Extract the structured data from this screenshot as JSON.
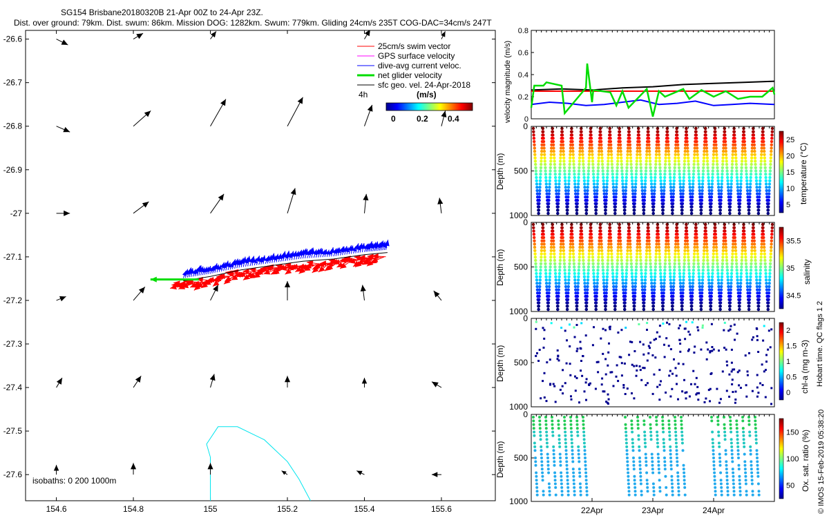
{
  "title": {
    "line1": "SG154 Brisbane20180320B 21-Apr 00Z to 24-Apr 23Z.",
    "line2": "Dist. over ground: 79km. Dist. swum: 86km. Mission DOG: 1282km. Swum: 779km. Gliding 24cm/s 235T COG-DAC=34cm/s 247T"
  },
  "map": {
    "xlim": [
      154.52,
      155.74
    ],
    "ylim": [
      -27.66,
      -26.58
    ],
    "xticks": [
      154.6,
      154.8,
      155.0,
      155.2,
      155.4,
      155.6
    ],
    "xtick_labels": [
      "154.6",
      "154.8",
      "155",
      "155.2",
      "155.4",
      "155.6"
    ],
    "yticks": [
      -26.6,
      -26.7,
      -26.8,
      -26.9,
      -27.0,
      -27.1,
      -27.2,
      -27.3,
      -27.4,
      -27.5,
      -27.6
    ],
    "ytick_labels": [
      "-26.6",
      "-26.7",
      "-26.8",
      "-26.9",
      "-27",
      "-27.1",
      "-27.2",
      "-27.3",
      "-27.4",
      "-27.5",
      "-27.6"
    ],
    "isobaths_label": "isobaths: 0   200  1000m",
    "legend": [
      {
        "label": "25cm/s swim vector",
        "color": "#ff0000"
      },
      {
        "label": "GPS surface velocity",
        "color": "#ff00ff"
      },
      {
        "label": "dive-avg current veloc.",
        "color": "#0000ff"
      },
      {
        "label": "net glider velocity",
        "color": "#00dd00"
      },
      {
        "label": "sfc geo. vel. 24-Apr-2018",
        "color": "#000000"
      }
    ],
    "colorbar_label": "4h",
    "colorbar_units": "(m/s)",
    "colorbar_ticks": [
      "0",
      "0.2",
      "0.4"
    ],
    "geo_vectors": [
      {
        "lon": 154.6,
        "lat": -26.6,
        "u": 0.06,
        "v": -0.03
      },
      {
        "lon": 154.8,
        "lat": -26.6,
        "u": 0.05,
        "v": 0.03
      },
      {
        "lon": 155.0,
        "lat": -26.6,
        "u": 0.03,
        "v": 0.04
      },
      {
        "lon": 155.4,
        "lat": -26.6,
        "u": 0.03,
        "v": 0.05
      },
      {
        "lon": 155.6,
        "lat": -26.6,
        "u": 0.02,
        "v": 0.04
      },
      {
        "lon": 154.6,
        "lat": -26.8,
        "u": 0.07,
        "v": -0.03
      },
      {
        "lon": 154.8,
        "lat": -26.8,
        "u": 0.09,
        "v": 0.08
      },
      {
        "lon": 155.0,
        "lat": -26.8,
        "u": 0.08,
        "v": 0.14
      },
      {
        "lon": 155.2,
        "lat": -26.8,
        "u": 0.08,
        "v": 0.15
      },
      {
        "lon": 155.4,
        "lat": -26.8,
        "u": 0.04,
        "v": 0.11
      },
      {
        "lon": 155.6,
        "lat": -26.8,
        "u": 0.02,
        "v": 0.08
      },
      {
        "lon": 154.6,
        "lat": -27.0,
        "u": 0.07,
        "v": 0.0
      },
      {
        "lon": 154.8,
        "lat": -27.0,
        "u": 0.08,
        "v": 0.06
      },
      {
        "lon": 155.0,
        "lat": -27.0,
        "u": 0.07,
        "v": 0.1
      },
      {
        "lon": 155.2,
        "lat": -27.0,
        "u": 0.04,
        "v": 0.13
      },
      {
        "lon": 155.4,
        "lat": -27.0,
        "u": 0.01,
        "v": 0.1
      },
      {
        "lon": 155.6,
        "lat": -27.0,
        "u": -0.01,
        "v": 0.08
      },
      {
        "lon": 154.6,
        "lat": -27.2,
        "u": 0.05,
        "v": 0.02
      },
      {
        "lon": 154.8,
        "lat": -27.2,
        "u": 0.06,
        "v": 0.07
      },
      {
        "lon": 155.0,
        "lat": -27.2,
        "u": 0.04,
        "v": 0.08
      },
      {
        "lon": 155.2,
        "lat": -27.2,
        "u": 0.0,
        "v": 0.1
      },
      {
        "lon": 155.4,
        "lat": -27.2,
        "u": -0.01,
        "v": 0.08
      },
      {
        "lon": 155.6,
        "lat": -27.2,
        "u": -0.04,
        "v": 0.05
      },
      {
        "lon": 154.6,
        "lat": -27.4,
        "u": 0.03,
        "v": 0.05
      },
      {
        "lon": 154.8,
        "lat": -27.4,
        "u": 0.04,
        "v": 0.06
      },
      {
        "lon": 155.0,
        "lat": -27.4,
        "u": 0.02,
        "v": 0.07
      },
      {
        "lon": 155.2,
        "lat": -27.4,
        "u": 0.0,
        "v": 0.06
      },
      {
        "lon": 155.4,
        "lat": -27.4,
        "u": 0.0,
        "v": 0.05
      },
      {
        "lon": 155.6,
        "lat": -27.4,
        "u": -0.05,
        "v": 0.03
      },
      {
        "lon": 154.6,
        "lat": -27.6,
        "u": 0.0,
        "v": 0.05
      },
      {
        "lon": 154.8,
        "lat": -27.6,
        "u": 0.0,
        "v": 0.06
      },
      {
        "lon": 155.0,
        "lat": -27.6,
        "u": 0.0,
        "v": 0.06
      },
      {
        "lon": 155.2,
        "lat": -27.6,
        "u": -0.03,
        "v": 0.02
      },
      {
        "lon": 155.4,
        "lat": -27.6,
        "u": -0.04,
        "v": 0.02
      },
      {
        "lon": 155.6,
        "lat": -27.6,
        "u": -0.05,
        "v": 0.0
      }
    ],
    "glider_track": [
      [
        154.93,
        -27.155
      ],
      [
        155.0,
        -27.145
      ],
      [
        155.08,
        -27.13
      ],
      [
        155.16,
        -27.12
      ],
      [
        155.24,
        -27.11
      ],
      [
        155.32,
        -27.105
      ],
      [
        155.4,
        -27.095
      ],
      [
        155.46,
        -27.09
      ]
    ],
    "net_velocity_arrow": {
      "lon": 154.97,
      "lat": -27.152,
      "u": -0.25,
      "v": 0.0
    },
    "isobath_1000m": [
      [
        155.0,
        -27.66
      ],
      [
        155.0,
        -27.56
      ],
      [
        154.99,
        -27.53
      ],
      [
        155.02,
        -27.49
      ],
      [
        155.07,
        -27.49
      ],
      [
        155.14,
        -27.52
      ],
      [
        155.2,
        -27.57
      ],
      [
        155.23,
        -27.61
      ],
      [
        155.26,
        -27.66
      ]
    ]
  },
  "chart_data": [
    {
      "type": "line",
      "ylabel": "velocity magnitude (m/s)",
      "ylim": [
        0,
        0.8
      ],
      "yticks": [
        "0",
        "0.2",
        "0.4",
        "0.6",
        "0.8"
      ],
      "xlim": [
        0,
        4
      ],
      "series": [
        {
          "name": "sfc geo. vel.",
          "color": "#000000",
          "x": [
            0,
            0.5,
            1,
            1.5,
            2,
            2.5,
            3,
            3.5,
            4
          ],
          "values": [
            0.26,
            0.27,
            0.26,
            0.28,
            0.29,
            0.31,
            0.32,
            0.33,
            0.34
          ]
        },
        {
          "name": "25cm/s swim vector",
          "color": "#ff0000",
          "x": [
            0,
            4
          ],
          "values": [
            0.25,
            0.25
          ]
        },
        {
          "name": "dive-avg current veloc.",
          "color": "#0000ff",
          "x": [
            0,
            0.3,
            0.6,
            0.9,
            1.2,
            1.5,
            1.8,
            2.1,
            2.4,
            2.7,
            3.0,
            3.3,
            3.6,
            4
          ],
          "values": [
            0.13,
            0.15,
            0.14,
            0.12,
            0.13,
            0.15,
            0.17,
            0.13,
            0.14,
            0.16,
            0.12,
            0.13,
            0.14,
            0.13
          ]
        },
        {
          "name": "net glider velocity",
          "color": "#00dd00",
          "x": [
            0,
            0.05,
            0.2,
            0.25,
            0.5,
            0.55,
            0.9,
            0.92,
            1.0,
            1.02,
            1.3,
            1.4,
            1.5,
            1.6,
            1.9,
            2.0,
            2.1,
            2.2,
            2.5,
            2.6,
            2.8,
            3.0,
            3.2,
            3.4,
            3.6,
            3.8,
            3.97,
            4
          ],
          "values": [
            0.1,
            0.3,
            0.3,
            0.33,
            0.3,
            0.05,
            0.28,
            0.5,
            0.15,
            0.26,
            0.24,
            0.12,
            0.25,
            0.1,
            0.27,
            0.02,
            0.25,
            0.2,
            0.27,
            0.18,
            0.26,
            0.2,
            0.25,
            0.18,
            0.2,
            0.2,
            0.28,
            0.22
          ]
        }
      ],
      "xtick_labels": []
    },
    {
      "type": "scatter",
      "name": "temperature",
      "ylabel": "Depth (m)",
      "ylim": [
        1000,
        0
      ],
      "yticks": [
        "0",
        "500",
        "1000"
      ],
      "colorbar_label": "temperature (°C)",
      "colorbar_ticks": [
        "5",
        "10",
        "15",
        "20",
        "25"
      ],
      "clim": [
        4,
        28
      ],
      "dives": 25
    },
    {
      "type": "scatter",
      "name": "salinity",
      "ylabel": "Depth (m)",
      "ylim": [
        1000,
        0
      ],
      "yticks": [
        "0",
        "500",
        "1000"
      ],
      "colorbar_label": "salinity",
      "colorbar_ticks": [
        "34.5",
        "35",
        "35.5"
      ],
      "clim": [
        34.3,
        35.9
      ],
      "dives": 25
    },
    {
      "type": "scatter",
      "name": "chlorophyll",
      "ylabel": "Depth (m)",
      "ylim": [
        1000,
        0
      ],
      "yticks": [
        "0",
        "500",
        "1000"
      ],
      "colorbar_label": "chl-a (mg m-3)",
      "colorbar_ticks": [
        "0",
        "0.5",
        "1",
        "1.5",
        "2"
      ],
      "clim": [
        0,
        2
      ],
      "side_label": "Hobart time. QC flags 1  2"
    },
    {
      "type": "scatter",
      "name": "oxygen",
      "ylabel": "Depth (m)",
      "ylim": [
        1000,
        0
      ],
      "yticks": [
        "0",
        "500",
        "1000"
      ],
      "colorbar_label": "Ox. sat. ratio (%)",
      "colorbar_ticks": [
        "50",
        "100",
        "150"
      ],
      "clim": [
        25,
        175
      ],
      "xtick_labels": [
        "22Apr",
        "23Apr",
        "24Apr"
      ]
    }
  ],
  "copyright": "© IMOS 15-Feb-2019 05:38:20"
}
